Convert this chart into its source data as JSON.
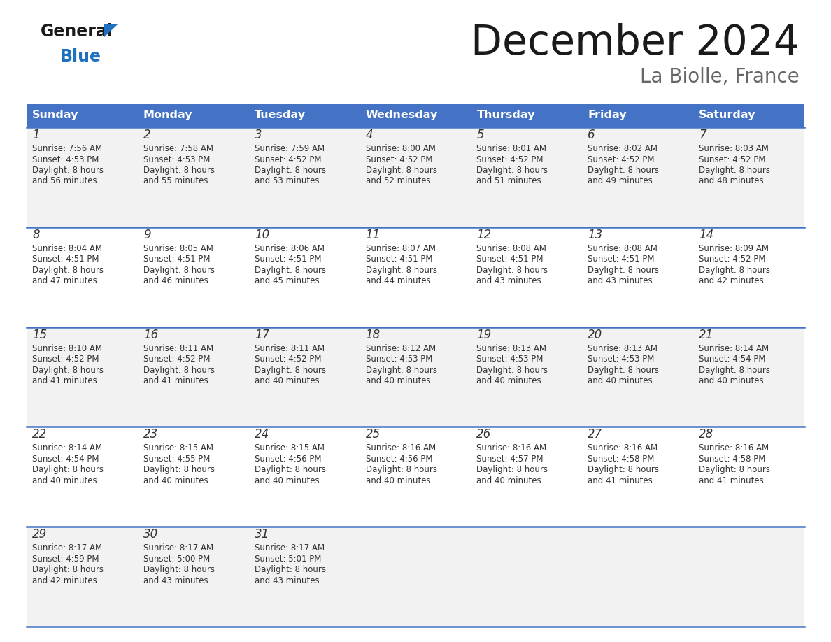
{
  "title": "December 2024",
  "subtitle": "La Biolle, France",
  "days_of_week": [
    "Sunday",
    "Monday",
    "Tuesday",
    "Wednesday",
    "Thursday",
    "Friday",
    "Saturday"
  ],
  "header_bg": "#4472C4",
  "header_text_color": "#FFFFFF",
  "row_bg_even": "#F2F2F2",
  "row_bg_odd": "#FFFFFF",
  "cell_text_color": "#333333",
  "divider_color": "#4472C4",
  "calendar_data": [
    [
      {
        "day": 1,
        "sunrise": "7:56 AM",
        "sunset": "4:53 PM",
        "daylight_min": "56"
      },
      {
        "day": 2,
        "sunrise": "7:58 AM",
        "sunset": "4:53 PM",
        "daylight_min": "55"
      },
      {
        "day": 3,
        "sunrise": "7:59 AM",
        "sunset": "4:52 PM",
        "daylight_min": "53"
      },
      {
        "day": 4,
        "sunrise": "8:00 AM",
        "sunset": "4:52 PM",
        "daylight_min": "52"
      },
      {
        "day": 5,
        "sunrise": "8:01 AM",
        "sunset": "4:52 PM",
        "daylight_min": "51"
      },
      {
        "day": 6,
        "sunrise": "8:02 AM",
        "sunset": "4:52 PM",
        "daylight_min": "49"
      },
      {
        "day": 7,
        "sunrise": "8:03 AM",
        "sunset": "4:52 PM",
        "daylight_min": "48"
      }
    ],
    [
      {
        "day": 8,
        "sunrise": "8:04 AM",
        "sunset": "4:51 PM",
        "daylight_min": "47"
      },
      {
        "day": 9,
        "sunrise": "8:05 AM",
        "sunset": "4:51 PM",
        "daylight_min": "46"
      },
      {
        "day": 10,
        "sunrise": "8:06 AM",
        "sunset": "4:51 PM",
        "daylight_min": "45"
      },
      {
        "day": 11,
        "sunrise": "8:07 AM",
        "sunset": "4:51 PM",
        "daylight_min": "44"
      },
      {
        "day": 12,
        "sunrise": "8:08 AM",
        "sunset": "4:51 PM",
        "daylight_min": "43"
      },
      {
        "day": 13,
        "sunrise": "8:08 AM",
        "sunset": "4:51 PM",
        "daylight_min": "43"
      },
      {
        "day": 14,
        "sunrise": "8:09 AM",
        "sunset": "4:52 PM",
        "daylight_min": "42"
      }
    ],
    [
      {
        "day": 15,
        "sunrise": "8:10 AM",
        "sunset": "4:52 PM",
        "daylight_min": "41"
      },
      {
        "day": 16,
        "sunrise": "8:11 AM",
        "sunset": "4:52 PM",
        "daylight_min": "41"
      },
      {
        "day": 17,
        "sunrise": "8:11 AM",
        "sunset": "4:52 PM",
        "daylight_min": "40"
      },
      {
        "day": 18,
        "sunrise": "8:12 AM",
        "sunset": "4:53 PM",
        "daylight_min": "40"
      },
      {
        "day": 19,
        "sunrise": "8:13 AM",
        "sunset": "4:53 PM",
        "daylight_min": "40"
      },
      {
        "day": 20,
        "sunrise": "8:13 AM",
        "sunset": "4:53 PM",
        "daylight_min": "40"
      },
      {
        "day": 21,
        "sunrise": "8:14 AM",
        "sunset": "4:54 PM",
        "daylight_min": "40"
      }
    ],
    [
      {
        "day": 22,
        "sunrise": "8:14 AM",
        "sunset": "4:54 PM",
        "daylight_min": "40"
      },
      {
        "day": 23,
        "sunrise": "8:15 AM",
        "sunset": "4:55 PM",
        "daylight_min": "40"
      },
      {
        "day": 24,
        "sunrise": "8:15 AM",
        "sunset": "4:56 PM",
        "daylight_min": "40"
      },
      {
        "day": 25,
        "sunrise": "8:16 AM",
        "sunset": "4:56 PM",
        "daylight_min": "40"
      },
      {
        "day": 26,
        "sunrise": "8:16 AM",
        "sunset": "4:57 PM",
        "daylight_min": "40"
      },
      {
        "day": 27,
        "sunrise": "8:16 AM",
        "sunset": "4:58 PM",
        "daylight_min": "41"
      },
      {
        "day": 28,
        "sunrise": "8:16 AM",
        "sunset": "4:58 PM",
        "daylight_min": "41"
      }
    ],
    [
      {
        "day": 29,
        "sunrise": "8:17 AM",
        "sunset": "4:59 PM",
        "daylight_min": "42"
      },
      {
        "day": 30,
        "sunrise": "8:17 AM",
        "sunset": "5:00 PM",
        "daylight_min": "43"
      },
      {
        "day": 31,
        "sunrise": "8:17 AM",
        "sunset": "5:01 PM",
        "daylight_min": "43"
      },
      null,
      null,
      null,
      null
    ]
  ],
  "logo_color_general": "#1A1A1A",
  "logo_color_blue": "#2070C0",
  "title_color": "#1A1A1A",
  "subtitle_color": "#666666"
}
